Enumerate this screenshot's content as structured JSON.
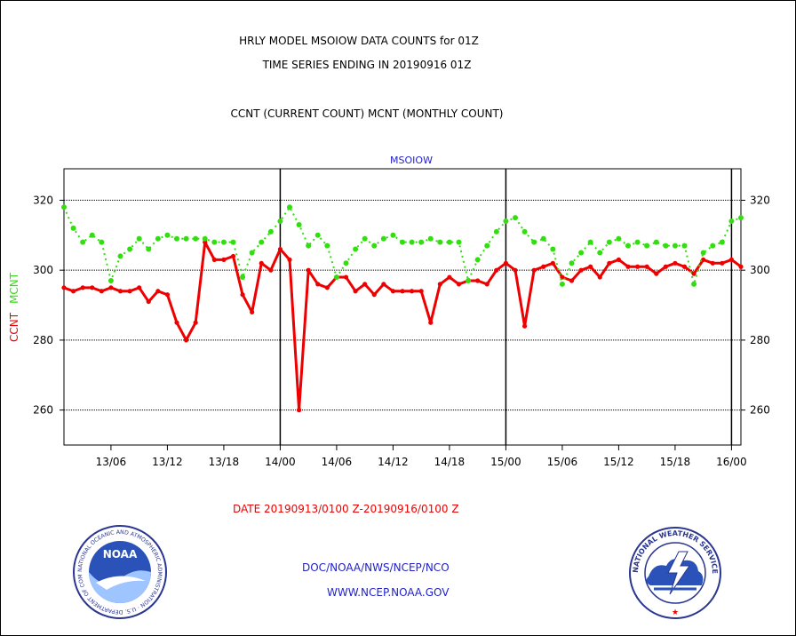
{
  "header": {
    "title_line1": "HRLY MODEL MSOIOW DATA COUNTS for 01Z",
    "title_line2": "TIME SERIES ENDING IN 20190916 01Z",
    "subtitle": "CCNT (CURRENT COUNT) MCNT (MONTHLY COUNT)"
  },
  "footer": {
    "date_range": "DATE 20190913/0100 Z-20190916/0100 Z",
    "org": "DOC/NOAA/NWS/NCEP/NCO",
    "url": "WWW.NCEP.NOAA.GOV"
  },
  "logos": {
    "left": {
      "text": "NOAA",
      "ring_text": "NATIONAL OCEANIC AND ATMOSPHERIC ADMINISTRATION · U.S. DEPARTMENT OF COMMERCE"
    },
    "right": {
      "ring_text": "NATIONAL WEATHER SERVICE"
    }
  },
  "chart_data": {
    "type": "line",
    "title": "MSOIOW",
    "ylabel_series": [
      "CCNT",
      "MCNT"
    ],
    "x_unit": "hours since 20190913/0100 Z",
    "xlim": [
      0,
      72
    ],
    "ylim": [
      250,
      329
    ],
    "yticks": [
      260,
      280,
      300,
      320
    ],
    "xticks": [
      {
        "hour": 5,
        "label": "13/06"
      },
      {
        "hour": 11,
        "label": "13/12"
      },
      {
        "hour": 17,
        "label": "13/18"
      },
      {
        "hour": 23,
        "label": "14/00"
      },
      {
        "hour": 29,
        "label": "14/06"
      },
      {
        "hour": 35,
        "label": "14/12"
      },
      {
        "hour": 41,
        "label": "14/18"
      },
      {
        "hour": 47,
        "label": "15/00"
      },
      {
        "hour": 53,
        "label": "15/06"
      },
      {
        "hour": 59,
        "label": "15/12"
      },
      {
        "hour": 65,
        "label": "15/18"
      },
      {
        "hour": 71,
        "label": "16/00"
      }
    ],
    "day_lines": [
      23,
      47,
      71
    ],
    "grid": "horizontal-dotted",
    "colors": {
      "CCNT": "#ee0000",
      "MCNT": "#33dd11",
      "title": "#2222cc"
    },
    "series": [
      {
        "name": "CCNT",
        "values": [
          295,
          294,
          295,
          295,
          294,
          295,
          294,
          294,
          295,
          291,
          294,
          293,
          285,
          280,
          285,
          308,
          303,
          303,
          304,
          293,
          288,
          302,
          300,
          306,
          303,
          260,
          300,
          296,
          295,
          298,
          298,
          294,
          296,
          293,
          296,
          294,
          294,
          294,
          294,
          285,
          296,
          298,
          296,
          297,
          297,
          296,
          300,
          302,
          300,
          284,
          300,
          301,
          302,
          298,
          297,
          300,
          301,
          298,
          302,
          303,
          301,
          301,
          301,
          299,
          301,
          302,
          301,
          299,
          303,
          302,
          302,
          303,
          301
        ]
      },
      {
        "name": "MCNT",
        "values": [
          318,
          312,
          308,
          310,
          308,
          297,
          304,
          306,
          309,
          306,
          309,
          310,
          309,
          309,
          309,
          309,
          308,
          308,
          308,
          298,
          305,
          308,
          311,
          314,
          318,
          313,
          307,
          310,
          307,
          298,
          302,
          306,
          309,
          307,
          309,
          310,
          308,
          308,
          308,
          309,
          308,
          308,
          308,
          297,
          303,
          307,
          311,
          314,
          315,
          311,
          308,
          309,
          306,
          296,
          302,
          305,
          308,
          305,
          308,
          309,
          307,
          308,
          307,
          308,
          307,
          307,
          307,
          296,
          305,
          307,
          308,
          314,
          315
        ]
      }
    ]
  }
}
